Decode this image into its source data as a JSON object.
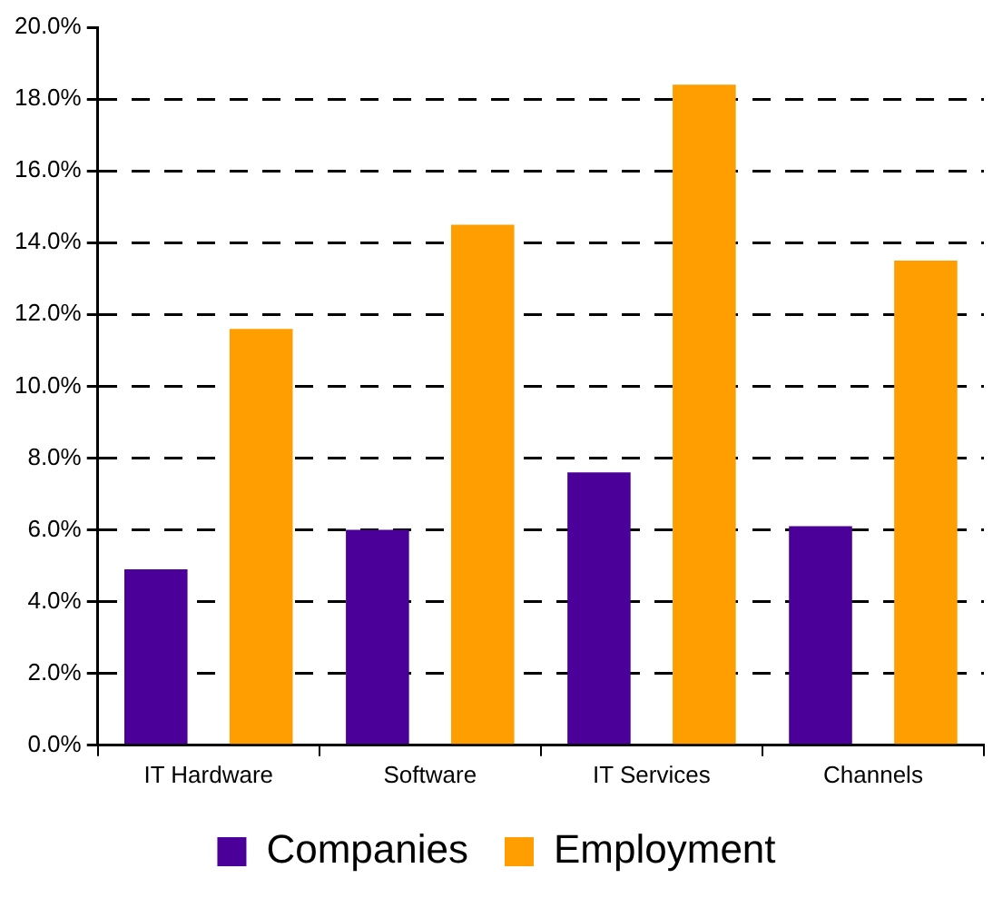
{
  "chart_data": {
    "type": "bar",
    "categories": [
      "IT Hardware",
      "Software",
      "IT Services",
      "Channels"
    ],
    "series": [
      {
        "name": "Companies",
        "color": "#4b0099",
        "values": [
          4.9,
          6.0,
          7.6,
          6.1
        ]
      },
      {
        "name": "Employment",
        "color": "#ff9e00",
        "values": [
          11.6,
          14.5,
          18.4,
          13.5
        ]
      }
    ],
    "ylim": [
      0,
      20
    ],
    "yticks": [
      {
        "value": 0,
        "label": "0.0%"
      },
      {
        "value": 2,
        "label": "2.0%"
      },
      {
        "value": 4,
        "label": "4.0%"
      },
      {
        "value": 6,
        "label": "6.0%"
      },
      {
        "value": 8,
        "label": "8.0%"
      },
      {
        "value": 10,
        "label": "10.0%"
      },
      {
        "value": 12,
        "label": "12.0%"
      },
      {
        "value": 14,
        "label": "14.0%"
      },
      {
        "value": 16,
        "label": "16.0%"
      },
      {
        "value": 18,
        "label": "18.0%"
      },
      {
        "value": 20,
        "label": "20.0%"
      }
    ],
    "grid": "y",
    "legend": "bottom",
    "line_style": "dashed"
  }
}
